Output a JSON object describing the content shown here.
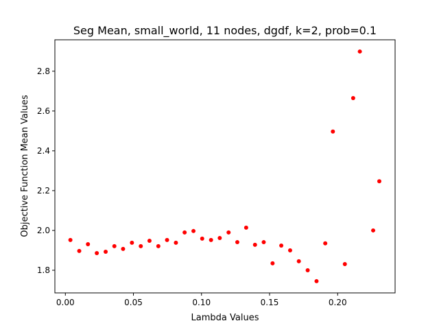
{
  "chart_data": {
    "type": "scatter",
    "title": "Seg Mean, small_world, 11 nodes, dgdf, k=2, prob=0.1",
    "xlabel": "Lambda Values",
    "ylabel": "Objective Function Mean Values",
    "xlim": [
      -0.0077,
      0.2422
    ],
    "ylim": [
      1.6862,
      2.9578
    ],
    "x_ticks": [
      0.0,
      0.05,
      0.1,
      0.15,
      0.2
    ],
    "x_tick_labels": [
      "0.00",
      "0.05",
      "0.10",
      "0.15",
      "0.20"
    ],
    "y_ticks": [
      1.8,
      2.0,
      2.2,
      2.4,
      2.6,
      2.8
    ],
    "y_tick_labels": [
      "1.8",
      "2.0",
      "2.2",
      "2.4",
      "2.6",
      "2.8"
    ],
    "grid": false,
    "series": [
      {
        "color": "#ff0000",
        "x": [
          0.0037,
          0.0102,
          0.0166,
          0.0231,
          0.0296,
          0.036,
          0.0424,
          0.0489,
          0.0554,
          0.0618,
          0.0683,
          0.0747,
          0.0812,
          0.0876,
          0.0941,
          0.1005,
          0.107,
          0.1134,
          0.1199,
          0.1263,
          0.1328,
          0.1393,
          0.1457,
          0.1522,
          0.1586,
          0.1651,
          0.1715,
          0.178,
          0.1845,
          0.1909,
          0.1965,
          0.2053,
          0.2114,
          0.2163,
          0.2261,
          0.2306
        ],
        "y": [
          1.952,
          1.897,
          1.931,
          1.886,
          1.893,
          1.921,
          1.907,
          1.938,
          1.921,
          1.948,
          1.921,
          1.952,
          1.938,
          1.99,
          1.997,
          1.959,
          1.952,
          1.962,
          1.99,
          1.941,
          2.014,
          1.928,
          1.941,
          1.835,
          1.924,
          1.9,
          1.845,
          1.8,
          1.745,
          1.935,
          2.497,
          1.831,
          2.665,
          2.899,
          2.0,
          2.247
        ]
      }
    ]
  }
}
